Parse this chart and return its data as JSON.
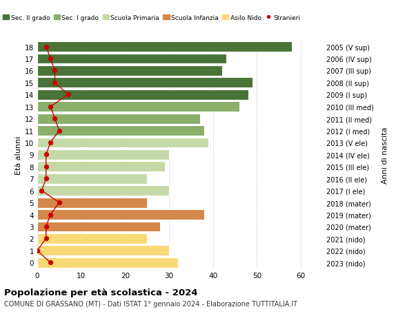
{
  "ages": [
    0,
    1,
    2,
    3,
    4,
    5,
    6,
    7,
    8,
    9,
    10,
    11,
    12,
    13,
    14,
    15,
    16,
    17,
    18
  ],
  "years": [
    "2023 (nido)",
    "2022 (nido)",
    "2021 (nido)",
    "2020 (mater)",
    "2019 (mater)",
    "2018 (mater)",
    "2017 (I ele)",
    "2016 (II ele)",
    "2015 (III ele)",
    "2014 (IV ele)",
    "2013 (V ele)",
    "2012 (I med)",
    "2011 (II med)",
    "2010 (III med)",
    "2009 (I sup)",
    "2008 (II sup)",
    "2007 (III sup)",
    "2006 (IV sup)",
    "2005 (V sup)"
  ],
  "bar_values": [
    32,
    30,
    25,
    28,
    38,
    25,
    30,
    25,
    29,
    30,
    39,
    38,
    37,
    46,
    48,
    49,
    42,
    43,
    58
  ],
  "stranieri_x": [
    3,
    0,
    2,
    2,
    3,
    5,
    1,
    2,
    2,
    2,
    3,
    5,
    4,
    3,
    7,
    4,
    4,
    3,
    2
  ],
  "bar_colors": [
    "#f9d976",
    "#f9d976",
    "#f9d976",
    "#d4874a",
    "#d4874a",
    "#d4874a",
    "#c5d9a8",
    "#c5d9a8",
    "#c5d9a8",
    "#c5d9a8",
    "#c5d9a8",
    "#8aaf6b",
    "#8aaf6b",
    "#8aaf6b",
    "#4a7337",
    "#4a7337",
    "#4a7337",
    "#4a7337",
    "#4a7337"
  ],
  "legend_labels": [
    "Sec. II grado",
    "Sec. I grado",
    "Scuola Primaria",
    "Scuola Infanzia",
    "Asilo Nido",
    "Stranieri"
  ],
  "legend_colors": [
    "#4a7337",
    "#8aaf6b",
    "#c5d9a8",
    "#d4874a",
    "#f9d976",
    "#cc0000"
  ],
  "stranieri_color": "#cc0000",
  "title": "Popolazione per età scolastica - 2024",
  "subtitle": "COMUNE DI GRASSANO (MT) - Dati ISTAT 1° gennaio 2024 - Elaborazione TUTTITALIA.IT",
  "ylabel_left": "Età alunni",
  "ylabel_right": "Anni di nascita",
  "xlim": [
    0,
    65
  ],
  "bg_color": "#ffffff",
  "grid_color": "#cccccc"
}
